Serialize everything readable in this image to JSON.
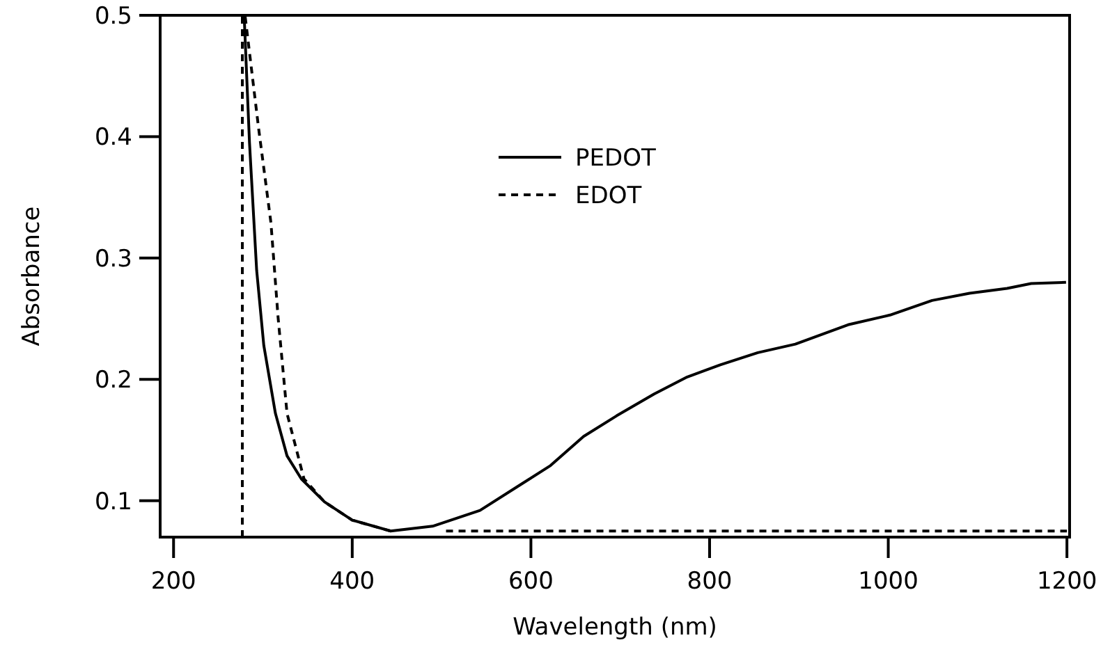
{
  "chart_data": {
    "type": "line",
    "xlabel": "Wavelength (nm)",
    "ylabel": "Absorbance",
    "xlim": [
      185,
      1203
    ],
    "ylim": [
      0.07,
      0.5
    ],
    "xticks": [
      200,
      400,
      600,
      800,
      1000,
      1200
    ],
    "yticks": [
      0.1,
      0.2,
      0.3,
      0.4,
      0.5
    ],
    "grid": false,
    "legend": "top",
    "marker": "none",
    "series": [
      {
        "name": "PEDOT",
        "color": "#000000",
        "line_style": "solid",
        "x": [
          279,
          285,
          293,
          301,
          314,
          327,
          343,
          369,
          400,
          443,
          490,
          543,
          590,
          622,
          659,
          696,
          738,
          775,
          812,
          854,
          896,
          955,
          1002,
          1049,
          1091,
          1133,
          1160,
          1199
        ],
        "values": [
          0.5,
          0.395,
          0.29,
          0.228,
          0.172,
          0.137,
          0.118,
          0.099,
          0.084,
          0.075,
          0.079,
          0.092,
          0.114,
          0.129,
          0.153,
          0.17,
          0.188,
          0.202,
          0.212,
          0.222,
          0.229,
          0.245,
          0.253,
          0.265,
          0.271,
          0.275,
          0.279,
          0.28
        ]
      },
      {
        "name": "EDOT",
        "color": "#000000",
        "line_style": "dashed",
        "x": [
          277,
          277,
          280,
          295,
          309,
          317,
          327,
          346,
          369,
          400,
          443,
          470,
          505,
          1200
        ],
        "values": [
          0.07,
          0.5,
          0.5,
          0.408,
          0.329,
          0.251,
          0.172,
          0.118,
          0.099,
          0.084,
          0.075,
          null,
          0.075,
          0.075
        ]
      }
    ]
  }
}
